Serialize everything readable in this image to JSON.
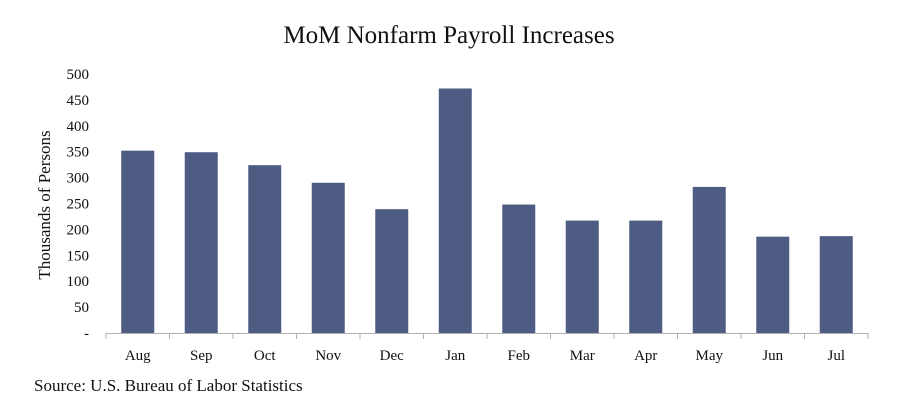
{
  "chart_data": {
    "type": "bar",
    "title": "MoM Nonfarm Payroll Increases",
    "xlabel": "",
    "ylabel": "Thousands of Persons",
    "categories": [
      "Aug",
      "Sep",
      "Oct",
      "Nov",
      "Dec",
      "Jan",
      "Feb",
      "Mar",
      "Apr",
      "May",
      "Jun",
      "Jul"
    ],
    "values": [
      352,
      349,
      324,
      290,
      239,
      472,
      248,
      217,
      217,
      282,
      186,
      187
    ],
    "ylim": [
      0,
      500
    ],
    "yticks": [
      "-",
      "50",
      "100",
      "150",
      "200",
      "250",
      "300",
      "350",
      "400",
      "450",
      "500"
    ],
    "grid": false,
    "bar_color": "#4e5b82",
    "source": "Source: U.S. Bureau of Labor Statistics"
  }
}
